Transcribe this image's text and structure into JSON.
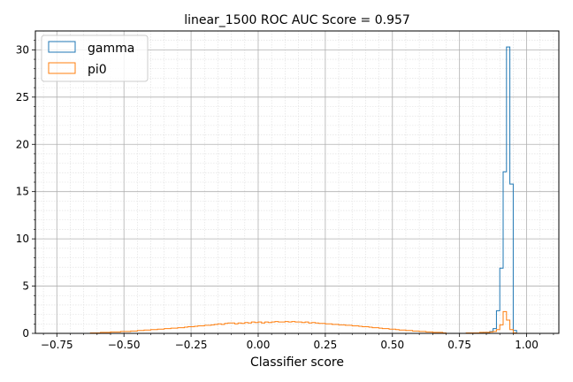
{
  "chart_data": {
    "type": "histogram",
    "title": "linear_1500 ROC AUC Score = 0.957",
    "xlabel": "Classifier score",
    "ylabel": "",
    "xlim": [
      -0.83,
      1.12
    ],
    "ylim": [
      0,
      32
    ],
    "xticks": [
      -0.75,
      -0.5,
      -0.25,
      0.0,
      0.25,
      0.5,
      0.75,
      1.0
    ],
    "xtick_labels": [
      "−0.75",
      "−0.50",
      "−0.25",
      "0.00",
      "0.25",
      "0.50",
      "0.75",
      "1.00"
    ],
    "yticks": [
      0,
      5,
      10,
      15,
      20,
      25,
      30
    ],
    "ytick_labels": [
      "0",
      "5",
      "10",
      "15",
      "20",
      "25",
      "30"
    ],
    "grid": true,
    "minor_grid": true,
    "legend_position": "top-left",
    "series": [
      {
        "name": "gamma",
        "color": "#1f77b4",
        "bin_width": 0.0125,
        "bins": [
          [
            0.775,
            0.05
          ],
          [
            0.7875,
            0.05
          ],
          [
            0.8,
            0.05
          ],
          [
            0.8125,
            0.05
          ],
          [
            0.825,
            0.05
          ],
          [
            0.8375,
            0.1
          ],
          [
            0.85,
            0.1
          ],
          [
            0.8625,
            0.2
          ],
          [
            0.875,
            0.5
          ],
          [
            0.8875,
            2.4
          ],
          [
            0.9,
            6.9
          ],
          [
            0.9125,
            17.1
          ],
          [
            0.925,
            30.3
          ],
          [
            0.9375,
            15.8
          ],
          [
            0.95,
            0.3
          ]
        ]
      },
      {
        "name": "pi0",
        "color": "#ff7f0e",
        "bin_width": 0.0125,
        "bins": [
          [
            -0.625,
            0.05
          ],
          [
            -0.6125,
            0.05
          ],
          [
            -0.6,
            0.05
          ],
          [
            -0.5875,
            0.1
          ],
          [
            -0.575,
            0.1
          ],
          [
            -0.5625,
            0.1
          ],
          [
            -0.55,
            0.15
          ],
          [
            -0.5375,
            0.15
          ],
          [
            -0.525,
            0.15
          ],
          [
            -0.5125,
            0.2
          ],
          [
            -0.5,
            0.2
          ],
          [
            -0.4875,
            0.2
          ],
          [
            -0.475,
            0.25
          ],
          [
            -0.4625,
            0.25
          ],
          [
            -0.45,
            0.3
          ],
          [
            -0.4375,
            0.3
          ],
          [
            -0.425,
            0.35
          ],
          [
            -0.4125,
            0.35
          ],
          [
            -0.4,
            0.4
          ],
          [
            -0.3875,
            0.4
          ],
          [
            -0.375,
            0.45
          ],
          [
            -0.3625,
            0.45
          ],
          [
            -0.35,
            0.5
          ],
          [
            -0.3375,
            0.5
          ],
          [
            -0.325,
            0.55
          ],
          [
            -0.3125,
            0.55
          ],
          [
            -0.3,
            0.6
          ],
          [
            -0.2875,
            0.6
          ],
          [
            -0.275,
            0.65
          ],
          [
            -0.2625,
            0.7
          ],
          [
            -0.25,
            0.7
          ],
          [
            -0.2375,
            0.75
          ],
          [
            -0.225,
            0.8
          ],
          [
            -0.2125,
            0.8
          ],
          [
            -0.2,
            0.85
          ],
          [
            -0.1875,
            0.85
          ],
          [
            -0.175,
            0.9
          ],
          [
            -0.1625,
            0.95
          ],
          [
            -0.15,
            1.0
          ],
          [
            -0.1375,
            0.95
          ],
          [
            -0.125,
            1.05
          ],
          [
            -0.1125,
            1.1
          ],
          [
            -0.1,
            1.1
          ],
          [
            -0.0875,
            1.0
          ],
          [
            -0.075,
            1.1
          ],
          [
            -0.0625,
            1.05
          ],
          [
            -0.05,
            1.15
          ],
          [
            -0.0375,
            1.1
          ],
          [
            -0.025,
            1.2
          ],
          [
            -0.0125,
            1.15
          ],
          [
            0.0,
            1.2
          ],
          [
            0.0125,
            1.1
          ],
          [
            0.025,
            1.2
          ],
          [
            0.0375,
            1.15
          ],
          [
            0.05,
            1.2
          ],
          [
            0.0625,
            1.25
          ],
          [
            0.075,
            1.2
          ],
          [
            0.0875,
            1.2
          ],
          [
            0.1,
            1.25
          ],
          [
            0.1125,
            1.2
          ],
          [
            0.125,
            1.25
          ],
          [
            0.1375,
            1.2
          ],
          [
            0.15,
            1.2
          ],
          [
            0.1625,
            1.15
          ],
          [
            0.175,
            1.2
          ],
          [
            0.1875,
            1.1
          ],
          [
            0.2,
            1.15
          ],
          [
            0.2125,
            1.1
          ],
          [
            0.225,
            1.05
          ],
          [
            0.2375,
            1.05
          ],
          [
            0.25,
            1.0
          ],
          [
            0.2625,
            1.0
          ],
          [
            0.275,
            0.95
          ],
          [
            0.2875,
            0.95
          ],
          [
            0.3,
            0.9
          ],
          [
            0.3125,
            0.9
          ],
          [
            0.325,
            0.85
          ],
          [
            0.3375,
            0.85
          ],
          [
            0.35,
            0.8
          ],
          [
            0.3625,
            0.8
          ],
          [
            0.375,
            0.75
          ],
          [
            0.3875,
            0.7
          ],
          [
            0.4,
            0.7
          ],
          [
            0.4125,
            0.65
          ],
          [
            0.425,
            0.6
          ],
          [
            0.4375,
            0.6
          ],
          [
            0.45,
            0.55
          ],
          [
            0.4625,
            0.5
          ],
          [
            0.475,
            0.5
          ],
          [
            0.4875,
            0.45
          ],
          [
            0.5,
            0.45
          ],
          [
            0.5125,
            0.4
          ],
          [
            0.525,
            0.35
          ],
          [
            0.5375,
            0.35
          ],
          [
            0.55,
            0.3
          ],
          [
            0.5625,
            0.3
          ],
          [
            0.575,
            0.25
          ],
          [
            0.5875,
            0.25
          ],
          [
            0.6,
            0.2
          ],
          [
            0.6125,
            0.2
          ],
          [
            0.625,
            0.15
          ],
          [
            0.6375,
            0.15
          ],
          [
            0.65,
            0.1
          ],
          [
            0.6625,
            0.1
          ],
          [
            0.675,
            0.1
          ],
          [
            0.6875,
            0.05
          ],
          [
            0.775,
            0.05
          ],
          [
            0.7875,
            0.05
          ],
          [
            0.8,
            0.05
          ],
          [
            0.8125,
            0.05
          ],
          [
            0.825,
            0.1
          ],
          [
            0.8375,
            0.1
          ],
          [
            0.85,
            0.1
          ],
          [
            0.8625,
            0.15
          ],
          [
            0.875,
            0.2
          ],
          [
            0.8875,
            0.4
          ],
          [
            0.9,
            0.9
          ],
          [
            0.9125,
            2.3
          ],
          [
            0.925,
            1.4
          ],
          [
            0.9375,
            0.4
          ],
          [
            0.95,
            0.05
          ]
        ]
      }
    ]
  }
}
